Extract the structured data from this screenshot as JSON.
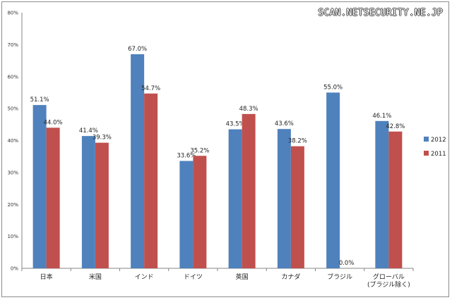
{
  "watermark": "SCAN.NETSECURITY.NE.JP",
  "chart_data": {
    "type": "bar",
    "title": "",
    "xlabel": "",
    "ylabel": "",
    "ylim": [
      0,
      80
    ],
    "yticks": [
      "0%",
      "10%",
      "20%",
      "30%",
      "40%",
      "50%",
      "60%",
      "70%",
      "80%"
    ],
    "categories": [
      "日本",
      "米国",
      "インド",
      "ドイツ",
      "英国",
      "カナダ",
      "ブラジル",
      "グローバル\n(ブラジル除く)"
    ],
    "series": [
      {
        "name": "2012",
        "color": "#4f81bd",
        "values": [
          51.1,
          41.4,
          67.0,
          33.6,
          43.5,
          43.6,
          55.0,
          46.1
        ],
        "labels": [
          "51.1%",
          "41.4%",
          "67.0%",
          "33.6%",
          "43.5%",
          "43.6%",
          "55.0%",
          "46.1%"
        ]
      },
      {
        "name": "2011",
        "color": "#c0504d",
        "values": [
          44.0,
          39.3,
          54.7,
          35.2,
          48.3,
          38.2,
          0.0,
          42.8
        ],
        "labels": [
          "44.0%",
          "39.3%",
          "54.7%",
          "35.2%",
          "48.3%",
          "38.2%",
          "0.0%",
          "42.8%"
        ]
      }
    ],
    "legend_position": "right"
  }
}
